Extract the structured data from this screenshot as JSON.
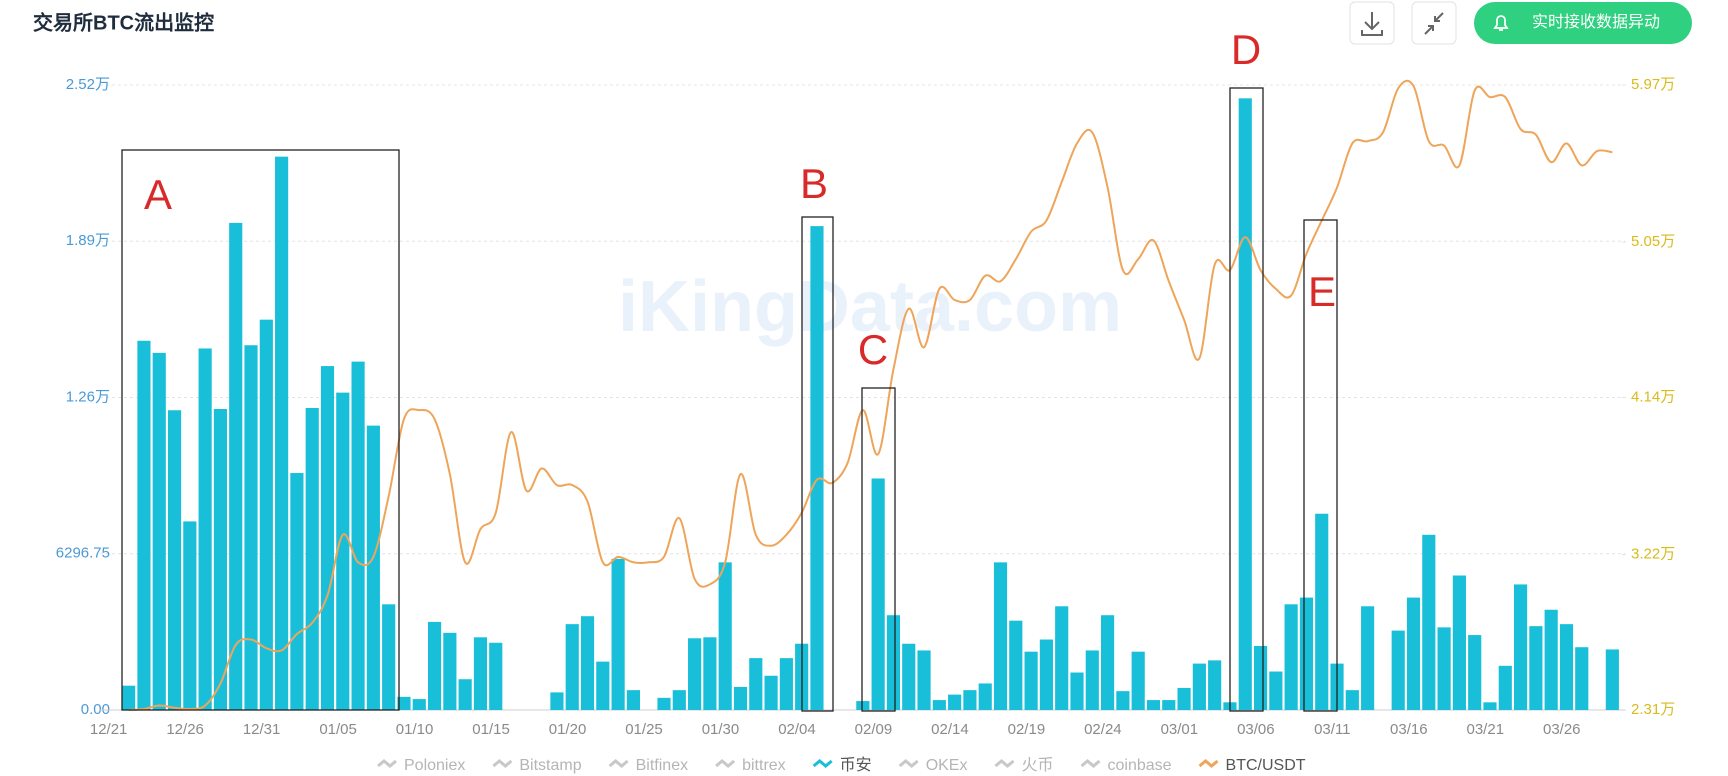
{
  "header": {
    "title": "交易所BTC流出监控",
    "button": "实时接收数据异动",
    "watermark": "iKingData.com"
  },
  "chart_data": {
    "type": "bar",
    "categories": [
      "12/21",
      null,
      null,
      null,
      null,
      "12/26",
      null,
      null,
      null,
      null,
      "12/31",
      null,
      null,
      null,
      null,
      "01/05",
      null,
      null,
      null,
      null,
      "01/10",
      null,
      null,
      null,
      null,
      "01/15",
      null,
      null,
      null,
      null,
      "01/20",
      null,
      null,
      null,
      null,
      "01/25",
      null,
      null,
      null,
      null,
      "01/30",
      null,
      null,
      null,
      null,
      "02/04",
      null,
      null,
      null,
      null,
      "02/09",
      null,
      null,
      null,
      null,
      "02/14",
      null,
      null,
      null,
      null,
      "02/19",
      null,
      null,
      null,
      null,
      "02/24",
      null,
      null,
      null,
      null,
      "03/01",
      null,
      null,
      null,
      null,
      "03/06",
      null,
      null,
      null,
      null,
      "03/11",
      null,
      null,
      null,
      null,
      "03/16",
      null,
      null,
      null,
      null,
      "03/21",
      null,
      null,
      null,
      null,
      "03/26",
      null,
      null
    ],
    "series": [
      {
        "name": "币安",
        "type": "bar",
        "color": "#19bfd9",
        "axis": "y",
        "values": [
          980,
          14880,
          14390,
          12080,
          7600,
          14570,
          12130,
          19630,
          14700,
          15730,
          22300,
          9550,
          12170,
          13860,
          12790,
          14040,
          11460,
          4260,
          530,
          440,
          3550,
          3110,
          1240,
          2930,
          2710,
          null,
          null,
          null,
          710,
          3460,
          3780,
          1950,
          6090,
          800,
          null,
          490,
          800,
          2890,
          2930,
          5950,
          930,
          2090,
          1380,
          2090,
          2670,
          19500,
          null,
          null,
          360,
          9330,
          3820,
          2670,
          2400,
          400,
          620,
          800,
          1070,
          5950,
          3600,
          2350,
          2840,
          4180,
          1510,
          2400,
          3820,
          760,
          2350,
          400,
          400,
          890,
          1870,
          2000,
          310,
          24650,
          2580,
          1550,
          4260,
          4530,
          7910,
          1870,
          800,
          4180,
          null,
          3200,
          4530,
          7060,
          3330,
          5420,
          3020,
          310,
          1780,
          5060,
          3380,
          4040,
          3460,
          2530,
          null,
          2440
        ]
      },
      {
        "name": "BTC/USDT",
        "type": "line",
        "color": "#eea55a",
        "axis": "y2",
        "values": [
          23100,
          23160,
          23360,
          23230,
          23160,
          23360,
          24650,
          26910,
          27230,
          26720,
          26590,
          27550,
          28200,
          29810,
          33360,
          31750,
          32070,
          35620,
          40140,
          40660,
          40140,
          36910,
          31750,
          33690,
          34650,
          39370,
          35950,
          37240,
          36270,
          36270,
          35300,
          31750,
          32070,
          31750,
          31750,
          32070,
          34330,
          30780,
          30460,
          31750,
          36910,
          33360,
          32720,
          33360,
          34650,
          36590,
          36400,
          37560,
          40660,
          38080,
          43050,
          46600,
          44340,
          47760,
          47110,
          47110,
          48530,
          48210,
          49500,
          51110,
          51760,
          54020,
          56280,
          56920,
          53700,
          48860,
          49500,
          50600,
          48210,
          45950,
          43690,
          49180,
          48860,
          50790,
          48860,
          47760,
          47370,
          49820,
          51760,
          53700,
          56280,
          56410,
          56920,
          59510,
          59640,
          56410,
          56150,
          54990,
          59380,
          58990,
          58990,
          57120,
          56790,
          55180,
          56280,
          54990,
          55830,
          55760
        ]
      }
    ],
    "legend": [
      "Poloniex",
      "Bitstamp",
      "Bitfinex",
      "bittrex",
      "OKEx",
      "火币",
      "coinbase"
    ],
    "legend_inactive_color": "#c8c8c8",
    "ylim": [
      0,
      25187
    ],
    "yticks": [
      {
        "value": 0,
        "label": "0.00"
      },
      6296.75,
      {
        "value": 12593.5,
        "label": "1.26万"
      },
      {
        "value": 18890.25,
        "label": "1.89万"
      },
      {
        "value": 25187,
        "label": "2.52万"
      }
    ],
    "y2lim": [
      23100,
      59700
    ],
    "y2ticks": [
      {
        "value": 23100,
        "label": "2.31万"
      },
      {
        "value": 32200,
        "label": "3.22万"
      },
      {
        "value": 41400,
        "label": "4.14万"
      },
      {
        "value": 50500,
        "label": "5.05万"
      },
      {
        "value": 59700,
        "label": "5.97万"
      }
    ],
    "grid": true,
    "annotations": [
      "A",
      "B",
      "C",
      "D",
      "E"
    ]
  }
}
